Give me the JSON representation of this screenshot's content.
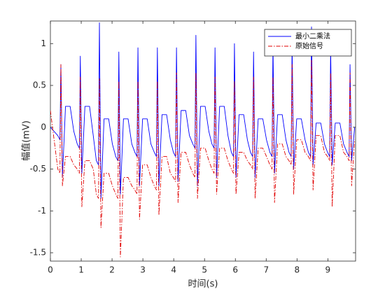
{
  "chart_data": {
    "type": "line",
    "xlabel": "时间(s)",
    "ylabel": "幅值(mV)",
    "xlim": [
      0,
      9.9
    ],
    "xticks": [
      0,
      1,
      2,
      3,
      4,
      5,
      6,
      7,
      8,
      9
    ],
    "ylim": [
      -1.6,
      1.27
    ],
    "yticks": [
      -1.5,
      -1,
      -0.5,
      0,
      0.5,
      1
    ],
    "grid": false,
    "legend": "upper right",
    "x": [
      0,
      0.24,
      0.31,
      0.34,
      0.39,
      0.49,
      0.64,
      0.76,
      0.87,
      0.94,
      0.97,
      1.02,
      1.12,
      1.27,
      1.39,
      1.49,
      1.56,
      1.59,
      1.64,
      1.74,
      1.89,
      2.01,
      2.12,
      2.19,
      2.22,
      2.27,
      2.37,
      2.52,
      2.64,
      2.74,
      2.81,
      2.84,
      2.89,
      2.99,
      3.14,
      3.26,
      3.37,
      3.44,
      3.47,
      3.52,
      3.62,
      3.77,
      3.89,
      3.99,
      4.06,
      4.09,
      4.14,
      4.24,
      4.39,
      4.51,
      4.62,
      4.69,
      4.72,
      4.77,
      4.87,
      5.02,
      5.14,
      5.24,
      5.31,
      5.34,
      5.39,
      5.49,
      5.64,
      5.76,
      5.87,
      5.94,
      5.97,
      6.02,
      6.12,
      6.27,
      6.39,
      6.49,
      6.56,
      6.59,
      6.64,
      6.74,
      6.89,
      7.01,
      7.12,
      7.19,
      7.22,
      7.27,
      7.37,
      7.52,
      7.64,
      7.74,
      7.81,
      7.84,
      7.89,
      7.99,
      8.14,
      8.26,
      8.37,
      8.44,
      8.47,
      8.52,
      8.62,
      8.77,
      8.89,
      8.99,
      9.06,
      9.09,
      9.14,
      9.24,
      9.39,
      9.51,
      9.62,
      9.69,
      9.72,
      9.77,
      9.87
    ],
    "series": [
      {
        "name": "最小二乘法",
        "color": "#0000ff",
        "dash": "solid",
        "values": [
          0,
          -0.1,
          -0.15,
          0.75,
          -0.6,
          0.25,
          0.25,
          -0.05,
          -0.2,
          -0.25,
          0.85,
          -0.55,
          0.25,
          0.25,
          -0.1,
          -0.4,
          -0.45,
          1.25,
          -0.85,
          0.1,
          0.1,
          -0.2,
          -0.35,
          -0.4,
          0.9,
          -0.8,
          0.1,
          0.1,
          -0.2,
          -0.3,
          -0.35,
          0.95,
          -0.7,
          0.1,
          0.1,
          -0.2,
          -0.3,
          -0.35,
          0.95,
          -0.7,
          0.15,
          0.15,
          -0.15,
          -0.3,
          -0.35,
          0.95,
          -0.65,
          0.2,
          0.2,
          -0.1,
          -0.2,
          -0.25,
          1.1,
          -0.7,
          0.25,
          0.25,
          -0.05,
          -0.2,
          -0.25,
          0.95,
          -0.6,
          0.25,
          0.25,
          -0.1,
          -0.3,
          -0.35,
          1.0,
          -0.6,
          0.15,
          0.15,
          -0.15,
          -0.3,
          -0.35,
          0.9,
          -0.6,
          0.1,
          0.1,
          -0.15,
          -0.3,
          -0.35,
          1.0,
          -0.55,
          0.15,
          0.15,
          -0.15,
          -0.3,
          -0.35,
          1.0,
          -0.5,
          0.1,
          0.1,
          -0.15,
          -0.3,
          -0.35,
          1.2,
          -0.45,
          0.05,
          0.05,
          -0.2,
          -0.3,
          -0.35,
          0.95,
          -0.45,
          0.05,
          0.05,
          -0.2,
          -0.3,
          -0.35,
          0.75,
          -0.4,
          0.0
        ]
      },
      {
        "name": "原始信号",
        "color": "#e00000",
        "dash": "dashdot",
        "values": [
          0.2,
          -0.5,
          -0.55,
          0.75,
          -0.7,
          -0.35,
          -0.35,
          -0.45,
          -0.5,
          -0.55,
          0.6,
          -0.95,
          -0.4,
          -0.4,
          -0.5,
          -0.8,
          -0.85,
          0.58,
          -1.2,
          -0.55,
          -0.55,
          -0.7,
          -0.8,
          -0.85,
          0.55,
          -1.55,
          -0.6,
          -0.6,
          -0.7,
          -0.75,
          -0.8,
          0.55,
          -1.1,
          -0.45,
          -0.45,
          -0.6,
          -0.7,
          -0.75,
          0.55,
          -1.05,
          -0.35,
          -0.35,
          -0.55,
          -0.6,
          -0.65,
          0.65,
          -0.9,
          -0.3,
          -0.3,
          -0.45,
          -0.55,
          -0.6,
          0.65,
          -0.85,
          -0.25,
          -0.25,
          -0.4,
          -0.5,
          -0.55,
          0.6,
          -0.8,
          -0.25,
          -0.25,
          -0.4,
          -0.5,
          -0.55,
          0.55,
          -0.8,
          -0.3,
          -0.3,
          -0.4,
          -0.45,
          -0.5,
          0.6,
          -0.85,
          -0.25,
          -0.25,
          -0.35,
          -0.45,
          -0.5,
          0.6,
          -0.9,
          -0.2,
          -0.2,
          -0.35,
          -0.4,
          -0.45,
          0.75,
          -0.8,
          -0.15,
          -0.15,
          -0.3,
          -0.35,
          -0.4,
          0.8,
          -0.75,
          -0.1,
          -0.1,
          -0.3,
          -0.35,
          -0.4,
          0.65,
          -0.95,
          -0.1,
          -0.1,
          -0.3,
          -0.35,
          -0.4,
          0.65,
          -0.7,
          -0.15
        ]
      }
    ]
  }
}
